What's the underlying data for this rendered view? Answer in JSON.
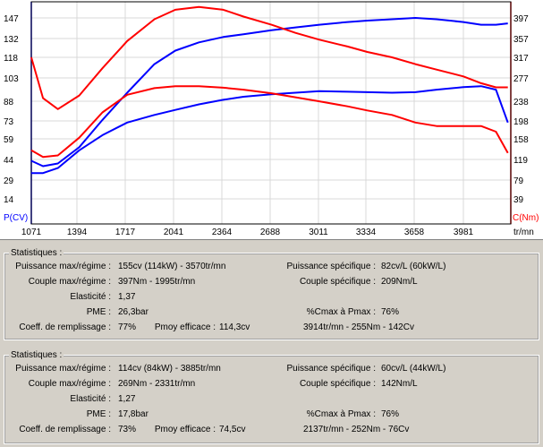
{
  "chart_data": {
    "type": "line",
    "left_axis": {
      "label": "P(CV)",
      "ticks": [
        "147",
        "132",
        "118",
        "103",
        "88",
        "73",
        "59",
        "44",
        "29",
        "14"
      ],
      "range": [
        0,
        160
      ]
    },
    "right_axis": {
      "label": "C(Nm)",
      "ticks": [
        "397",
        "357",
        "317",
        "277",
        "238",
        "198",
        "158",
        "119",
        "79",
        "39"
      ],
      "range": [
        0,
        400
      ]
    },
    "x_axis": {
      "unit": "tr/mn",
      "ticks": [
        "1071",
        "1394",
        "1717",
        "2041",
        "2364",
        "2688",
        "3011",
        "3334",
        "3658",
        "3981"
      ],
      "range": [
        1071,
        4300
      ]
    },
    "series": [
      {
        "color": "#0000ff",
        "axis": "left",
        "points": [
          [
            1071,
            42
          ],
          [
            1150,
            38
          ],
          [
            1250,
            40
          ],
          [
            1394,
            52
          ],
          [
            1550,
            72
          ],
          [
            1717,
            92
          ],
          [
            1900,
            113
          ],
          [
            2041,
            123
          ],
          [
            2200,
            129
          ],
          [
            2364,
            133
          ],
          [
            2500,
            135
          ],
          [
            2688,
            138
          ],
          [
            2850,
            140
          ],
          [
            3011,
            142
          ],
          [
            3200,
            144
          ],
          [
            3334,
            145
          ],
          [
            3500,
            146
          ],
          [
            3658,
            147
          ],
          [
            3800,
            146
          ],
          [
            3981,
            144
          ],
          [
            4100,
            142
          ],
          [
            4200,
            142
          ],
          [
            4280,
            143
          ]
        ]
      },
      {
        "color": "#ff0000",
        "axis": "left",
        "points": [
          [
            1071,
            118
          ],
          [
            1150,
            88
          ],
          [
            1250,
            80
          ],
          [
            1394,
            90
          ],
          [
            1550,
            110
          ],
          [
            1717,
            130
          ],
          [
            1900,
            146
          ],
          [
            2041,
            153
          ],
          [
            2200,
            155
          ],
          [
            2364,
            153
          ],
          [
            2500,
            148
          ],
          [
            2688,
            142
          ],
          [
            2850,
            136
          ],
          [
            3011,
            131
          ],
          [
            3200,
            126
          ],
          [
            3334,
            122
          ],
          [
            3500,
            118
          ],
          [
            3658,
            113
          ],
          [
            3800,
            109
          ],
          [
            3981,
            104
          ],
          [
            4100,
            99
          ],
          [
            4200,
            96
          ],
          [
            4280,
            96
          ]
        ]
      },
      {
        "color": "#0000ff",
        "axis": "right",
        "points": [
          [
            1071,
            90
          ],
          [
            1150,
            90
          ],
          [
            1250,
            100
          ],
          [
            1394,
            135
          ],
          [
            1550,
            165
          ],
          [
            1717,
            190
          ],
          [
            1900,
            205
          ],
          [
            2041,
            215
          ],
          [
            2200,
            226
          ],
          [
            2364,
            235
          ],
          [
            2500,
            241
          ],
          [
            2688,
            246
          ],
          [
            2850,
            249
          ],
          [
            3011,
            252
          ],
          [
            3200,
            251
          ],
          [
            3334,
            250
          ],
          [
            3500,
            249
          ],
          [
            3658,
            250
          ],
          [
            3800,
            255
          ],
          [
            3981,
            260
          ],
          [
            4100,
            262
          ],
          [
            4200,
            255
          ],
          [
            4280,
            190
          ]
        ]
      },
      {
        "color": "#ff0000",
        "axis": "right",
        "points": [
          [
            1071,
            135
          ],
          [
            1150,
            122
          ],
          [
            1250,
            125
          ],
          [
            1394,
            160
          ],
          [
            1550,
            210
          ],
          [
            1717,
            245
          ],
          [
            1900,
            258
          ],
          [
            2041,
            262
          ],
          [
            2200,
            262
          ],
          [
            2364,
            259
          ],
          [
            2500,
            255
          ],
          [
            2688,
            248
          ],
          [
            2850,
            240
          ],
          [
            3011,
            232
          ],
          [
            3200,
            222
          ],
          [
            3334,
            214
          ],
          [
            3500,
            205
          ],
          [
            3658,
            190
          ],
          [
            3800,
            183
          ],
          [
            3981,
            183
          ],
          [
            4100,
            183
          ],
          [
            4200,
            172
          ],
          [
            4280,
            130
          ]
        ]
      }
    ]
  },
  "stats": [
    {
      "title": "Statistiques :",
      "pmax_label": "Puissance max/régime :",
      "pmax": "155cv (114kW) - 3570tr/mn",
      "cmax_label": "Couple max/régime :",
      "cmax": "397Nm - 1995tr/mn",
      "elast_label": "Elasticité :",
      "elast": "1,37",
      "pme_label": "PME :",
      "pme": "26,3bar",
      "coeff_label": "Coeff. de remplissage :",
      "coeff": "77%",
      "pmoy_label": "Pmoy efficace :",
      "pmoy": "114,3cv",
      "pspec_label": "Puissance spécifique :",
      "pspec": "82cv/L (60kW/L)",
      "cspec_label": "Couple spécifique :",
      "cspec": "209Nm/L",
      "pct_label": "%Cmax à Pmax :",
      "pct": "76%",
      "extra": "3914tr/mn - 255Nm - 142Cv"
    },
    {
      "title": "Statistiques :",
      "pmax_label": "Puissance max/régime :",
      "pmax": "114cv (84kW) - 3885tr/mn",
      "cmax_label": "Couple max/régime :",
      "cmax": "269Nm - 2331tr/mn",
      "elast_label": "Elasticité :",
      "elast": "1,27",
      "pme_label": "PME :",
      "pme": "17,8bar",
      "coeff_label": "Coeff. de remplissage :",
      "coeff": "73%",
      "pmoy_label": "Pmoy efficace :",
      "pmoy": "74,5cv",
      "pspec_label": "Puissance spécifique :",
      "pspec": "60cv/L (44kW/L)",
      "cspec_label": "Couple spécifique :",
      "cspec": "142Nm/L",
      "pct_label": "%Cmax à Pmax :",
      "pct": "76%",
      "extra": "2137tr/mn - 252Nm - 76Cv"
    }
  ]
}
